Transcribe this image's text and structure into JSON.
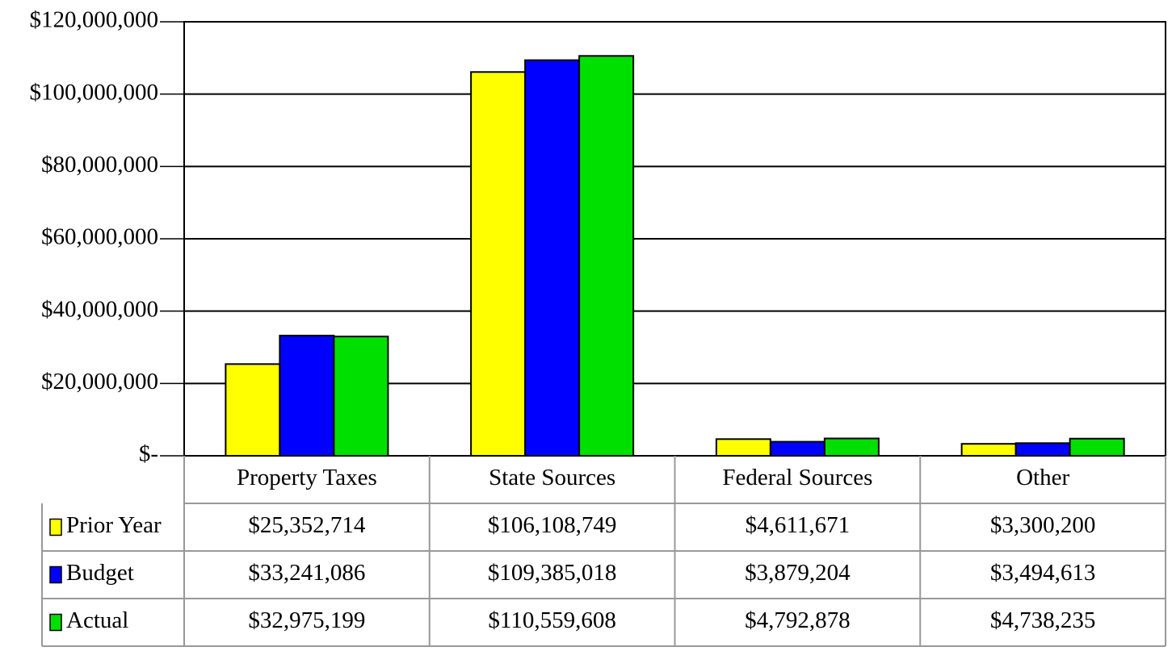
{
  "chart_data": {
    "type": "bar",
    "categories": [
      "Property Taxes",
      "State Sources",
      "Federal Sources",
      "Other"
    ],
    "series": [
      {
        "name": "Prior Year",
        "color": "#ffff00",
        "values": [
          25352714,
          106108749,
          4611671,
          3300200
        ],
        "value_labels": [
          "$25,352,714",
          "$106,108,749",
          "$4,611,671",
          "$3,300,200"
        ]
      },
      {
        "name": "Budget",
        "color": "#0000ff",
        "values": [
          33241086,
          109385018,
          3879204,
          3494613
        ],
        "value_labels": [
          "$33,241,086",
          "$109,385,018",
          "$3,879,204",
          "$3,494,613"
        ]
      },
      {
        "name": "Actual",
        "color": "#00e000",
        "values": [
          32975199,
          110559608,
          4792878,
          4738235
        ],
        "value_labels": [
          "$32,975,199",
          "$110,559,608",
          "$4,792,878",
          "$4,738,235"
        ]
      }
    ],
    "ylim": [
      0,
      120000000
    ],
    "yticks": [
      {
        "value": 0,
        "label": "$-"
      },
      {
        "value": 20000000,
        "label": "$20,000,000"
      },
      {
        "value": 40000000,
        "label": "$40,000,000"
      },
      {
        "value": 60000000,
        "label": "$60,000,000"
      },
      {
        "value": 80000000,
        "label": "$80,000,000"
      },
      {
        "value": 100000000,
        "label": "$100,000,000"
      },
      {
        "value": 120000000,
        "label": "$120,000,000"
      }
    ],
    "grid": true,
    "data_table": true
  }
}
